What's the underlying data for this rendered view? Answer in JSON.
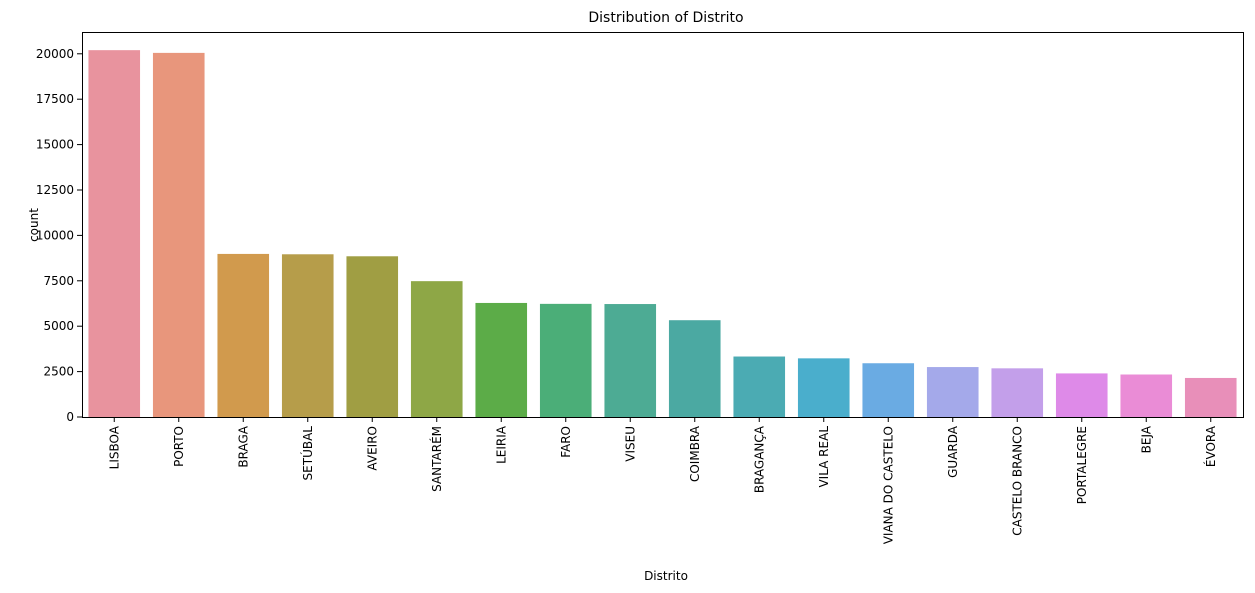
{
  "chart_data": {
    "type": "bar",
    "title": "Distribution of Distrito",
    "xlabel": "Distrito",
    "ylabel": "count",
    "ylim": [
      0,
      21200
    ],
    "yticks": [
      0,
      2500,
      5000,
      7500,
      10000,
      12500,
      15000,
      17500,
      20000
    ],
    "ytick_labels": [
      "0",
      "2500",
      "5000",
      "7500",
      "10000",
      "12500",
      "15000",
      "17500",
      "20000"
    ],
    "grid": false,
    "legend": "none",
    "categories": [
      "LISBOA",
      "PORTO",
      "BRAGA",
      "SETÚBAL",
      "AVEIRO",
      "SANTARÉM",
      "LEIRIA",
      "FARO",
      "VISEU",
      "COIMBRA",
      "BRAGANÇA",
      "VILA REAL",
      "VIANA DO CASTELO",
      "GUARDA",
      "CASTELO BRANCO",
      "PORTALEGRE",
      "BEJA",
      "ÉVORA"
    ],
    "values": [
      20200,
      20050,
      8980,
      8960,
      8850,
      7480,
      6280,
      6230,
      6220,
      5330,
      3330,
      3230,
      2960,
      2750,
      2680,
      2400,
      2340,
      2150
    ],
    "colors": [
      "#e8939e",
      "#e8967c",
      "#d19a4d",
      "#b69d4a",
      "#a09e43",
      "#8ea746",
      "#5cac48",
      "#4bae78",
      "#4dab94",
      "#4ba9a2",
      "#4babb3",
      "#4aaecc",
      "#6aabe3",
      "#a4a9ea",
      "#c39fea",
      "#de8ae8",
      "#ea8cd6",
      "#e88fb9"
    ]
  }
}
